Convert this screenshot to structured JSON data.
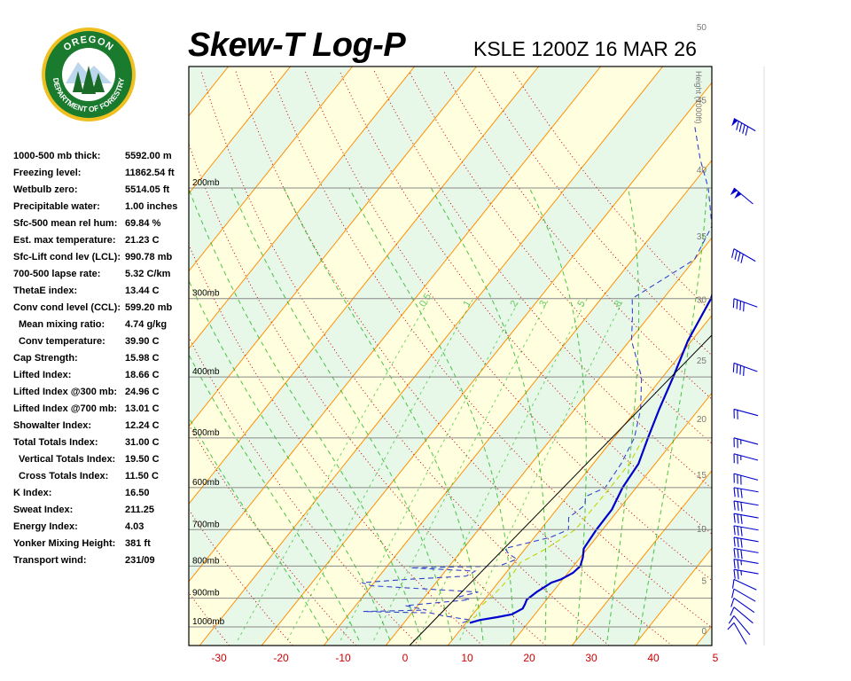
{
  "header": {
    "title": "Skew-T Log-P",
    "station_time": "KSLE 1200Z 16 MAR 26"
  },
  "logo": {
    "top_text": "OREGON",
    "bottom_text": "DEPARTMENT OF FORESTRY",
    "ring_color": "#1a7a2e",
    "rim_color": "#f0c020"
  },
  "indices": [
    {
      "label": "1000-500 mb thick:",
      "value": "5592.00 m",
      "indent": false
    },
    {
      "label": "Freezing level:",
      "value": "11862.54 ft",
      "indent": false
    },
    {
      "label": "Wetbulb zero:",
      "value": "5514.05 ft",
      "indent": false
    },
    {
      "label": "Precipitable water:",
      "value": "1.00 inches",
      "indent": false
    },
    {
      "label": "Sfc-500 mean rel hum:",
      "value": "69.84 %",
      "indent": false
    },
    {
      "label": "Est. max temperature:",
      "value": "21.23 C",
      "indent": false
    },
    {
      "label": "Sfc-Lift cond lev (LCL):",
      "value": "990.78 mb",
      "indent": false
    },
    {
      "label": "700-500 lapse rate:",
      "value": "5.32 C/km",
      "indent": false
    },
    {
      "label": "ThetaE index:",
      "value": "13.44 C",
      "indent": false
    },
    {
      "label": "Conv cond level (CCL):",
      "value": "599.20 mb",
      "indent": false
    },
    {
      "label": "Mean mixing ratio:",
      "value": "4.74 g/kg",
      "indent": true
    },
    {
      "label": "Conv temperature:",
      "value": "39.90 C",
      "indent": true
    },
    {
      "label": "Cap Strength:",
      "value": "15.98 C",
      "indent": false
    },
    {
      "label": "Lifted Index:",
      "value": "18.66 C",
      "indent": false
    },
    {
      "label": "Lifted Index @300 mb:",
      "value": "24.96 C",
      "indent": false
    },
    {
      "label": "Lifted Index @700 mb:",
      "value": "13.01 C",
      "indent": false
    },
    {
      "label": "Showalter Index:",
      "value": "12.24 C",
      "indent": false
    },
    {
      "label": "Total Totals Index:",
      "value": "31.00 C",
      "indent": false
    },
    {
      "label": "Vertical Totals Index:",
      "value": "19.50 C",
      "indent": true
    },
    {
      "label": "Cross Totals Index:",
      "value": "11.50 C",
      "indent": true
    },
    {
      "label": "K Index:",
      "value": "16.50",
      "indent": false
    },
    {
      "label": "Sweat Index:",
      "value": "211.25",
      "indent": false
    },
    {
      "label": "Energy Index:",
      "value": "4.03",
      "indent": false
    },
    {
      "label": "Yonker Mixing Height:",
      "value": "381 ft",
      "indent": false
    },
    {
      "label": "Transport wind:",
      "value": "231/09",
      "indent": false
    }
  ],
  "chart_data": {
    "type": "line",
    "title": "Skew-T Log-P",
    "pressure_levels": [
      {
        "p": 1000,
        "label": "1000mb"
      },
      {
        "p": 900,
        "label": "900mb"
      },
      {
        "p": 800,
        "label": "800mb"
      },
      {
        "p": 700,
        "label": "700mb"
      },
      {
        "p": 600,
        "label": "600mb"
      },
      {
        "p": 500,
        "label": "500mb"
      },
      {
        "p": 400,
        "label": "400mb"
      },
      {
        "p": 300,
        "label": "300mb"
      },
      {
        "p": 200,
        "label": "200mb"
      }
    ],
    "x_ticks": [
      "-30",
      "-20",
      "-10",
      "0",
      "10",
      "20",
      "30",
      "40",
      "5"
    ],
    "height_axis": {
      "title": "Height (1000ft)",
      "ticks": [
        "0",
        "5",
        "10",
        "15",
        "20",
        "25",
        "30",
        "35",
        "40",
        "45",
        "50"
      ]
    },
    "mixing_ratio_labels": [
      "0.5",
      "1",
      "2",
      "3",
      "5",
      "8"
    ],
    "series": [
      {
        "name": "Temperature",
        "color": "#0000cc",
        "style": "solid",
        "points": [
          [
            985,
            10.6
          ],
          [
            975,
            11.9
          ],
          [
            965,
            14.3
          ],
          [
            955,
            16.3
          ],
          [
            935,
            17.3
          ],
          [
            920,
            17.1
          ],
          [
            905,
            16.8
          ],
          [
            880,
            17.4
          ],
          [
            850,
            18.6
          ],
          [
            840,
            19.7
          ],
          [
            820,
            20.8
          ],
          [
            800,
            21.1
          ],
          [
            775,
            20.4
          ],
          [
            750,
            19.4
          ],
          [
            700,
            19.0
          ],
          [
            650,
            18.9
          ],
          [
            600,
            17.8
          ],
          [
            550,
            17.3
          ],
          [
            500,
            15.5
          ],
          [
            450,
            13.6
          ],
          [
            400,
            11.7
          ],
          [
            350,
            9.4
          ],
          [
            300,
            7.7
          ],
          [
            260,
            4.6
          ],
          [
            230,
            1.2
          ],
          [
            200,
            0.1
          ],
          [
            180,
            5.3
          ],
          [
            160,
            10.6
          ]
        ]
      },
      {
        "name": "Dewpoint",
        "color": "#3344cc",
        "style": "dashed",
        "points": [
          [
            985,
            9.4
          ],
          [
            975,
            10.3
          ],
          [
            960,
            5.4
          ],
          [
            950,
            3.0
          ],
          [
            945,
            -8.0
          ],
          [
            940,
            2.0
          ],
          [
            925,
            -2.0
          ],
          [
            905,
            7.6
          ],
          [
            895,
            5.6
          ],
          [
            880,
            8.0
          ],
          [
            860,
            -10.0
          ],
          [
            850,
            -12.0
          ],
          [
            840,
            -5.0
          ],
          [
            830,
            4.0
          ],
          [
            815,
            4.8
          ],
          [
            805,
            -6.0
          ],
          [
            800,
            8.0
          ],
          [
            780,
            10.0
          ],
          [
            765,
            8.0
          ],
          [
            750,
            6.7
          ],
          [
            720,
            12.6
          ],
          [
            700,
            14.5
          ],
          [
            670,
            13.0
          ],
          [
            640,
            14.0
          ],
          [
            620,
            13.0
          ],
          [
            600,
            15.0
          ],
          [
            550,
            14.5
          ],
          [
            500,
            13.3
          ],
          [
            450,
            10.6
          ],
          [
            400,
            6.6
          ],
          [
            350,
            0.3
          ],
          [
            320,
            -2.7
          ],
          [
            300,
            -5.0
          ],
          [
            260,
            0.0
          ],
          [
            230,
            -1.5
          ],
          [
            200,
            -7.0
          ],
          [
            180,
            -12.0
          ],
          [
            160,
            -17.0
          ]
        ]
      },
      {
        "name": "Wetbulb",
        "color": "#c8d400",
        "style": "dashed",
        "points": [
          [
            985,
            10.0
          ],
          [
            960,
            10.8
          ],
          [
            940,
            10.0
          ],
          [
            900,
            10.7
          ],
          [
            860,
            11.1
          ],
          [
            820,
            11.2
          ],
          [
            790,
            11.0
          ],
          [
            750,
            13.4
          ],
          [
            700,
            15.6
          ],
          [
            650,
            15.7
          ],
          [
            600,
            15.8
          ],
          [
            550,
            15.8
          ],
          [
            500,
            14.8
          ]
        ]
      }
    ],
    "wind_barbs": [
      {
        "p": 985,
        "dir": 330,
        "spd": 10
      },
      {
        "p": 960,
        "dir": 320,
        "spd": 10
      },
      {
        "p": 930,
        "dir": 310,
        "spd": 10
      },
      {
        "p": 900,
        "dir": 305,
        "spd": 10
      },
      {
        "p": 870,
        "dir": 300,
        "spd": 10
      },
      {
        "p": 840,
        "dir": 295,
        "spd": 10
      },
      {
        "p": 810,
        "dir": 280,
        "spd": 25
      },
      {
        "p": 780,
        "dir": 280,
        "spd": 25
      },
      {
        "p": 750,
        "dir": 280,
        "spd": 30
      },
      {
        "p": 720,
        "dir": 280,
        "spd": 30
      },
      {
        "p": 690,
        "dir": 280,
        "spd": 30
      },
      {
        "p": 660,
        "dir": 280,
        "spd": 30
      },
      {
        "p": 630,
        "dir": 280,
        "spd": 30
      },
      {
        "p": 600,
        "dir": 280,
        "spd": 30
      },
      {
        "p": 570,
        "dir": 285,
        "spd": 30
      },
      {
        "p": 530,
        "dir": 285,
        "spd": 25
      },
      {
        "p": 500,
        "dir": 285,
        "spd": 25
      },
      {
        "p": 450,
        "dir": 285,
        "spd": 20
      },
      {
        "p": 380,
        "dir": 290,
        "spd": 40
      },
      {
        "p": 300,
        "dir": 290,
        "spd": 40
      },
      {
        "p": 250,
        "dir": 300,
        "spd": 40
      },
      {
        "p": 200,
        "dir": 310,
        "spd": 100
      },
      {
        "p": 155,
        "dir": 300,
        "spd": 90
      }
    ],
    "colors": {
      "isotherm": "#ff8c00",
      "isobar": "#888888",
      "dry_adiabat": "#cc0000",
      "moist_adiabat": "#00aa00",
      "mixing_ratio": "#00b000",
      "band_green": "#e8f8e8",
      "band_yellow": "#ffffe0",
      "tick_labels": "#cc0000"
    }
  }
}
